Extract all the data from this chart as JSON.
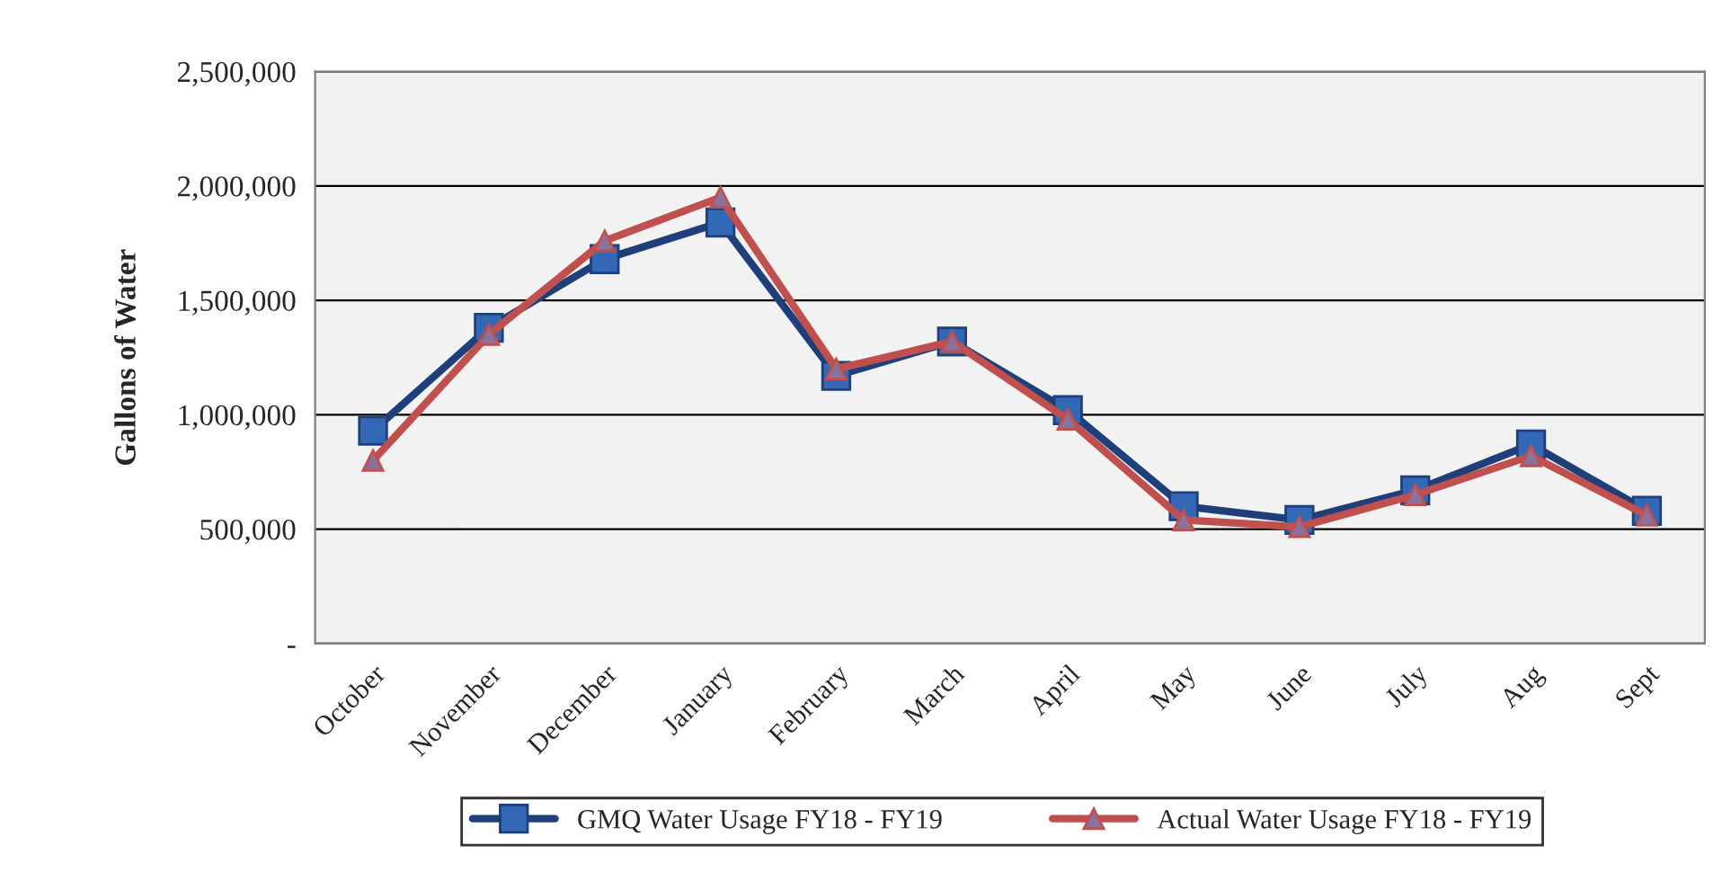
{
  "chart_data": {
    "type": "line",
    "ylabel": "Gallons of Water",
    "categories": [
      "October",
      "November",
      "December",
      "January",
      "February",
      "March",
      "April",
      "May",
      "June",
      "July",
      "Aug",
      "Sept"
    ],
    "series": [
      {
        "name": "GMQ Water Usage FY18 - FY19",
        "color": "#1f3f7a",
        "marker": "square",
        "values": [
          930000,
          1380000,
          1680000,
          1840000,
          1170000,
          1320000,
          1020000,
          600000,
          540000,
          670000,
          870000,
          580000
        ]
      },
      {
        "name": "Actual Water Usage FY18 - FY19",
        "color": "#c0504d",
        "marker": "triangle",
        "values": [
          800000,
          1350000,
          1760000,
          1950000,
          1200000,
          1320000,
          980000,
          540000,
          510000,
          650000,
          820000,
          560000
        ]
      }
    ],
    "ylim": [
      0,
      2500000
    ],
    "yticks": [
      {
        "value": 0,
        "label": "-"
      },
      {
        "value": 500000,
        "label": "500,000"
      },
      {
        "value": 1000000,
        "label": "1,000,000"
      },
      {
        "value": 1500000,
        "label": "1,500,000"
      },
      {
        "value": 2000000,
        "label": "2,000,000"
      },
      {
        "value": 2500000,
        "label": "2,500,000"
      }
    ],
    "grid": "y",
    "legend": "bottom",
    "line_style": "solid"
  }
}
